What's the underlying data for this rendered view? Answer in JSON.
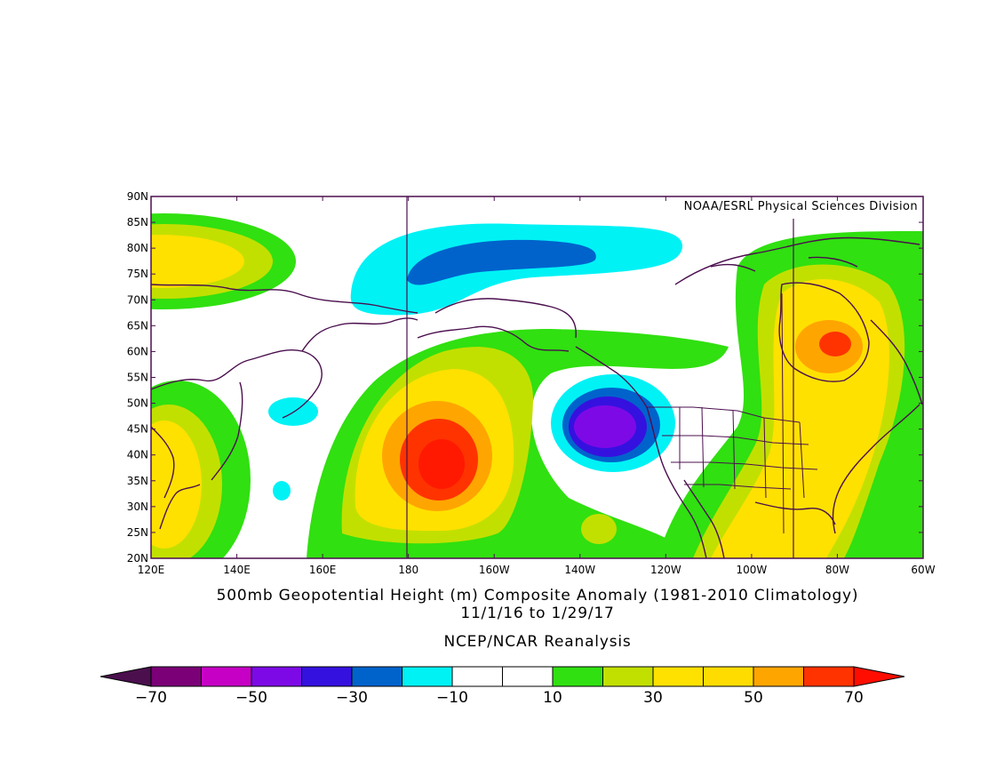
{
  "credit": "NOAA/ESRL Physical Sciences Division",
  "title": "500mb Geopotential Height (m) Composite Anomaly (1981-2010 Climatology)",
  "date_range": "11/1/16  to 1/29/17",
  "source": "NCEP/NCAR Reanalysis",
  "lat_labels": [
    "90N",
    "85N",
    "80N",
    "75N",
    "70N",
    "65N",
    "60N",
    "55N",
    "50N",
    "45N",
    "40N",
    "35N",
    "30N",
    "25N",
    "20N"
  ],
  "lon_labels": [
    "120E",
    "140E",
    "160E",
    "180",
    "160W",
    "140W",
    "120W",
    "100W",
    "80W",
    "60W"
  ],
  "colorbar": {
    "colors": [
      "#4b0f4e",
      "#7b0077",
      "#c600c4",
      "#7d0ae6",
      "#3511e0",
      "#0063cc",
      "#00f2f5",
      "#ffffff",
      "#ffffff",
      "#30e010",
      "#c2e000",
      "#ffe100",
      "#ffdc00",
      "#ffa500",
      "#ff3300",
      "#ff0d00"
    ],
    "tick_labels": [
      "-70",
      "-50",
      "-30",
      "-10",
      "10",
      "30",
      "50",
      "70"
    ],
    "levels": [
      -70,
      -60,
      -50,
      -40,
      -30,
      -20,
      -10,
      0,
      10,
      20,
      30,
      40,
      50,
      60,
      70
    ]
  },
  "colors": {
    "land_outline": "#4b0f4e",
    "frame": "#4b0f4e",
    "fill_10": "#30e010",
    "fill_20": "#c2e000",
    "fill_30": "#ffe100",
    "fill_50": "#ffa500",
    "fill_60": "#ff3300",
    "fill_m10": "#00f2f5",
    "fill_m20": "#0063cc",
    "fill_m30": "#3511e0",
    "fill_m40": "#7d0ae6"
  }
}
